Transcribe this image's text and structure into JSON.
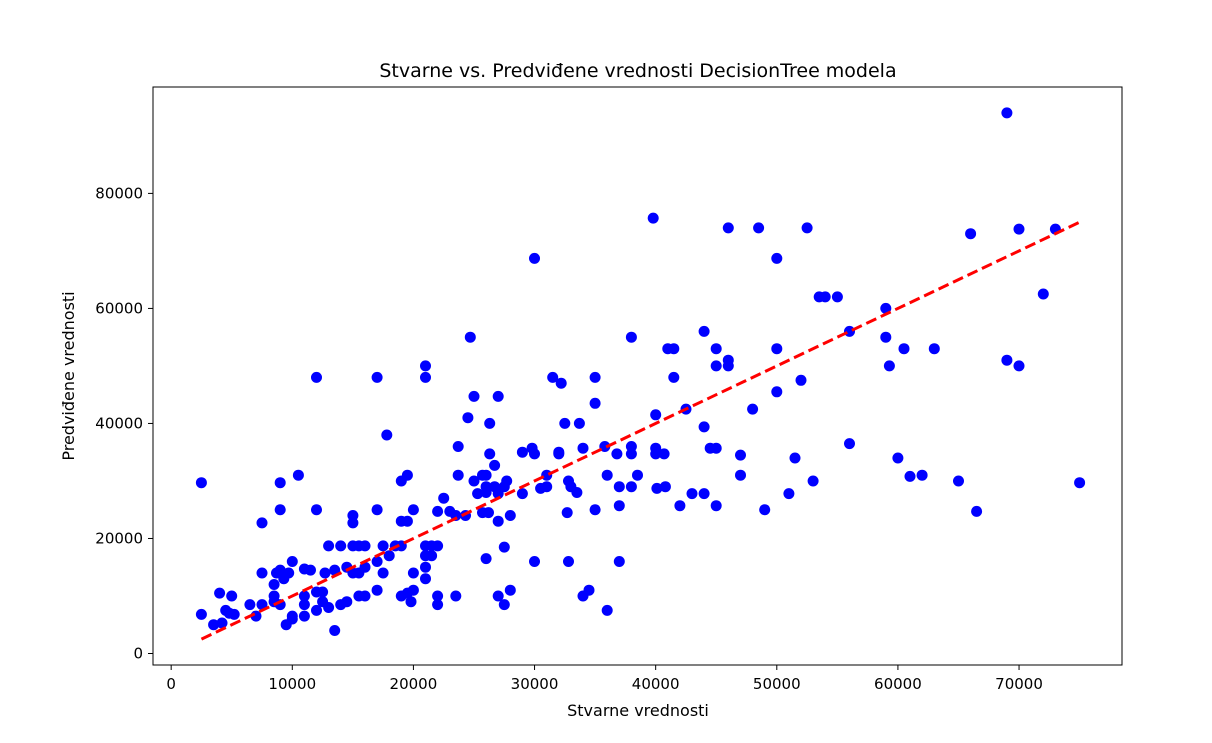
{
  "colors": {
    "points": "#0000ff",
    "ideal_line": "#ff0000",
    "axes": "#000000",
    "background": "#ffffff"
  },
  "chart_data": {
    "type": "scatter",
    "title": "Stvarne vs. Predviđene vrednosti DecisionTree modela",
    "xlabel": "Stvarne vrednosti",
    "ylabel": "Predviđene vrednosti",
    "xlim": [
      -1500,
      78500
    ],
    "ylim": [
      -2000,
      98500
    ],
    "x_ticks": [
      0,
      10000,
      20000,
      30000,
      40000,
      50000,
      60000,
      70000
    ],
    "x_tick_labels": [
      "0",
      "10000",
      "20000",
      "30000",
      "40000",
      "50000",
      "60000",
      "70000"
    ],
    "y_ticks": [
      0,
      20000,
      40000,
      60000,
      80000
    ],
    "y_tick_labels": [
      "0",
      "20000",
      "40000",
      "60000",
      "80000"
    ],
    "grid": false,
    "ideal_line": {
      "x": [
        2500,
        75000
      ],
      "y": [
        2500,
        75000
      ],
      "style": "dashed"
    },
    "points": [
      [
        2500,
        6800
      ],
      [
        2500,
        29700
      ],
      [
        3500,
        5000
      ],
      [
        4000,
        10500
      ],
      [
        4200,
        5300
      ],
      [
        4500,
        7500
      ],
      [
        4800,
        7000
      ],
      [
        5000,
        10000
      ],
      [
        5200,
        6800
      ],
      [
        6500,
        8500
      ],
      [
        7000,
        6500
      ],
      [
        7500,
        8500
      ],
      [
        7500,
        14000
      ],
      [
        7500,
        22700
      ],
      [
        8500,
        9000
      ],
      [
        8500,
        10000
      ],
      [
        8500,
        12000
      ],
      [
        8700,
        14000
      ],
      [
        9000,
        8500
      ],
      [
        9000,
        14500
      ],
      [
        9000,
        25000
      ],
      [
        9000,
        29700
      ],
      [
        9300,
        13000
      ],
      [
        9500,
        5000
      ],
      [
        9700,
        14000
      ],
      [
        10000,
        6000
      ],
      [
        10000,
        6500
      ],
      [
        10000,
        16000
      ],
      [
        10500,
        31000
      ],
      [
        11000,
        6500
      ],
      [
        11000,
        8500
      ],
      [
        11000,
        10000
      ],
      [
        11000,
        14700
      ],
      [
        11500,
        14500
      ],
      [
        12000,
        7500
      ],
      [
        12000,
        10700
      ],
      [
        12000,
        25000
      ],
      [
        12000,
        48000
      ],
      [
        12500,
        9000
      ],
      [
        12500,
        10700
      ],
      [
        12700,
        14000
      ],
      [
        13000,
        8000
      ],
      [
        13000,
        18700
      ],
      [
        13500,
        4000
      ],
      [
        13500,
        14500
      ],
      [
        14000,
        8500
      ],
      [
        14000,
        18700
      ],
      [
        14500,
        9000
      ],
      [
        14500,
        15000
      ],
      [
        15000,
        14000
      ],
      [
        15000,
        18700
      ],
      [
        15000,
        22700
      ],
      [
        15000,
        24000
      ],
      [
        15500,
        10000
      ],
      [
        15500,
        14000
      ],
      [
        15500,
        18700
      ],
      [
        16000,
        10000
      ],
      [
        16000,
        15000
      ],
      [
        16000,
        18700
      ],
      [
        17000,
        11000
      ],
      [
        17000,
        16000
      ],
      [
        17000,
        25000
      ],
      [
        17000,
        48000
      ],
      [
        17500,
        14000
      ],
      [
        17500,
        18700
      ],
      [
        17800,
        38000
      ],
      [
        18000,
        17000
      ],
      [
        18500,
        18700
      ],
      [
        19000,
        10000
      ],
      [
        19000,
        18700
      ],
      [
        19000,
        23000
      ],
      [
        19000,
        30000
      ],
      [
        19500,
        10500
      ],
      [
        19500,
        23000
      ],
      [
        19500,
        31000
      ],
      [
        19800,
        9000
      ],
      [
        20000,
        11000
      ],
      [
        20000,
        14000
      ],
      [
        20000,
        25000
      ],
      [
        21000,
        13000
      ],
      [
        21000,
        15000
      ],
      [
        21000,
        17000
      ],
      [
        21000,
        18700
      ],
      [
        21000,
        48000
      ],
      [
        21000,
        50000
      ],
      [
        21500,
        17000
      ],
      [
        21500,
        18700
      ],
      [
        22000,
        8500
      ],
      [
        22000,
        10000
      ],
      [
        22000,
        18700
      ],
      [
        22000,
        24700
      ],
      [
        22500,
        27000
      ],
      [
        23000,
        24700
      ],
      [
        23500,
        10000
      ],
      [
        23500,
        24000
      ],
      [
        23700,
        36000
      ],
      [
        23700,
        31000
      ],
      [
        24300,
        24000
      ],
      [
        24500,
        41000
      ],
      [
        24700,
        55000
      ],
      [
        25000,
        30000
      ],
      [
        25000,
        44700
      ],
      [
        25300,
        27800
      ],
      [
        25700,
        24500
      ],
      [
        25700,
        31000
      ],
      [
        26000,
        16500
      ],
      [
        26000,
        28000
      ],
      [
        26000,
        29000
      ],
      [
        26000,
        31000
      ],
      [
        26200,
        24500
      ],
      [
        26300,
        34700
      ],
      [
        26300,
        40000
      ],
      [
        26700,
        29000
      ],
      [
        26700,
        32700
      ],
      [
        27000,
        10000
      ],
      [
        27000,
        23000
      ],
      [
        27000,
        27800
      ],
      [
        27000,
        44700
      ],
      [
        27500,
        8500
      ],
      [
        27500,
        18500
      ],
      [
        27500,
        29000
      ],
      [
        27700,
        30000
      ],
      [
        28000,
        11000
      ],
      [
        28000,
        24000
      ],
      [
        29000,
        35000
      ],
      [
        29000,
        27800
      ],
      [
        29800,
        35700
      ],
      [
        30000,
        16000
      ],
      [
        30000,
        34700
      ],
      [
        30000,
        68700
      ],
      [
        30500,
        28700
      ],
      [
        31000,
        29000
      ],
      [
        31000,
        31000
      ],
      [
        31500,
        48000
      ],
      [
        32000,
        34700
      ],
      [
        32000,
        35000
      ],
      [
        32200,
        47000
      ],
      [
        32500,
        40000
      ],
      [
        32700,
        24500
      ],
      [
        32800,
        16000
      ],
      [
        32800,
        30000
      ],
      [
        33000,
        29000
      ],
      [
        33500,
        28000
      ],
      [
        33700,
        40000
      ],
      [
        34000,
        10000
      ],
      [
        34000,
        35700
      ],
      [
        34500,
        11000
      ],
      [
        35000,
        25000
      ],
      [
        35000,
        43500
      ],
      [
        35000,
        48000
      ],
      [
        35800,
        36000
      ],
      [
        36000,
        7500
      ],
      [
        36000,
        31000
      ],
      [
        36800,
        34700
      ],
      [
        37000,
        16000
      ],
      [
        37000,
        25700
      ],
      [
        37000,
        29000
      ],
      [
        38000,
        29000
      ],
      [
        38000,
        34700
      ],
      [
        38000,
        36000
      ],
      [
        38000,
        55000
      ],
      [
        38500,
        31000
      ],
      [
        39800,
        75700
      ],
      [
        40000,
        34700
      ],
      [
        40000,
        35700
      ],
      [
        40000,
        41500
      ],
      [
        40100,
        28700
      ],
      [
        40700,
        34700
      ],
      [
        40800,
        29000
      ],
      [
        41000,
        53000
      ],
      [
        41500,
        48000
      ],
      [
        41500,
        53000
      ],
      [
        42000,
        25700
      ],
      [
        42500,
        42500
      ],
      [
        43000,
        27800
      ],
      [
        44000,
        27800
      ],
      [
        44000,
        39400
      ],
      [
        44000,
        56000
      ],
      [
        44500,
        35700
      ],
      [
        45000,
        25700
      ],
      [
        45000,
        35700
      ],
      [
        45000,
        50000
      ],
      [
        45000,
        53000
      ],
      [
        46000,
        50000
      ],
      [
        46000,
        51000
      ],
      [
        46000,
        74000
      ],
      [
        47000,
        31000
      ],
      [
        47000,
        34500
      ],
      [
        48000,
        42500
      ],
      [
        48500,
        74000
      ],
      [
        49000,
        25000
      ],
      [
        50000,
        45500
      ],
      [
        50000,
        53000
      ],
      [
        50000,
        68700
      ],
      [
        51000,
        27800
      ],
      [
        51500,
        34000
      ],
      [
        52000,
        47500
      ],
      [
        52500,
        74000
      ],
      [
        53000,
        30000
      ],
      [
        53500,
        62000
      ],
      [
        54000,
        62000
      ],
      [
        55000,
        62000
      ],
      [
        56000,
        36500
      ],
      [
        56000,
        56000
      ],
      [
        59000,
        55000
      ],
      [
        59000,
        60000
      ],
      [
        59300,
        50000
      ],
      [
        60000,
        34000
      ],
      [
        60500,
        53000
      ],
      [
        61000,
        30800
      ],
      [
        62000,
        31000
      ],
      [
        63000,
        53000
      ],
      [
        65000,
        30000
      ],
      [
        66000,
        73000
      ],
      [
        66500,
        24700
      ],
      [
        69000,
        51000
      ],
      [
        69000,
        94000
      ],
      [
        70000,
        50000
      ],
      [
        70000,
        73800
      ],
      [
        72000,
        62500
      ],
      [
        73000,
        73800
      ],
      [
        75000,
        29700
      ]
    ]
  }
}
